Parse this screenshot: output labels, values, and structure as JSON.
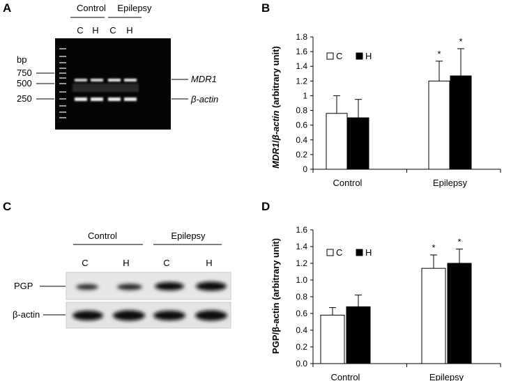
{
  "panels": {
    "a": {
      "letter": "A",
      "group_labels": [
        "Control",
        "Epilepsy"
      ],
      "lane_labels": [
        "C",
        "H",
        "C",
        "H"
      ],
      "marker_unit": "bp",
      "marker_sizes": [
        "750",
        "500",
        "250"
      ],
      "band_labels": [
        "MDR1",
        "β-actin"
      ]
    },
    "b": {
      "letter": "B"
    },
    "c": {
      "letter": "C",
      "group_labels": [
        "Control",
        "Epilepsy"
      ],
      "lane_labels": [
        "C",
        "H",
        "C",
        "H"
      ],
      "band_labels": [
        "PGP",
        "β-actin"
      ]
    },
    "d": {
      "letter": "D"
    }
  },
  "chart_data": [
    {
      "type": "bar",
      "categories": [
        "Control",
        "Epilepsy"
      ],
      "series": [
        {
          "name": "C",
          "values": [
            0.76,
            1.2
          ],
          "errors": [
            0.24,
            0.27
          ],
          "fill": "#ffffff"
        },
        {
          "name": "H",
          "values": [
            0.7,
            1.27
          ],
          "errors": [
            0.25,
            0.37
          ],
          "fill": "#000000"
        }
      ],
      "significance": [
        [
          "",
          ""
        ],
        [
          "*",
          "*"
        ]
      ],
      "ylabel_italic_parts": [
        "MDR1",
        "β-actin"
      ],
      "ylabel_parts": [
        "/",
        " (arbitrary unit)"
      ],
      "ylim": [
        0,
        1.8
      ],
      "yticks": [
        "0",
        "0.2",
        "0.4",
        "0.6",
        "0.8",
        "1",
        "1.2",
        "1.4",
        "1.6",
        "1.8"
      ],
      "legend": "upper-left",
      "grid": false
    },
    {
      "type": "bar",
      "categories": [
        "Control",
        "Epilepsy"
      ],
      "series": [
        {
          "name": "C",
          "values": [
            0.58,
            1.14
          ],
          "errors": [
            0.09,
            0.16
          ],
          "fill": "#ffffff"
        },
        {
          "name": "H",
          "values": [
            0.68,
            1.2
          ],
          "errors": [
            0.14,
            0.17
          ],
          "fill": "#000000"
        }
      ],
      "significance": [
        [
          "",
          ""
        ],
        [
          "*",
          "*"
        ]
      ],
      "ylabel": "PGP/β-actin (arbitrary unit)",
      "ylim": [
        0,
        1.6
      ],
      "yticks": [
        "0.0",
        "0.2",
        "0.4",
        "0.6",
        "0.8",
        "1.0",
        "1.2",
        "1.4",
        "1.6"
      ],
      "legend": "upper-left",
      "grid": false
    }
  ]
}
